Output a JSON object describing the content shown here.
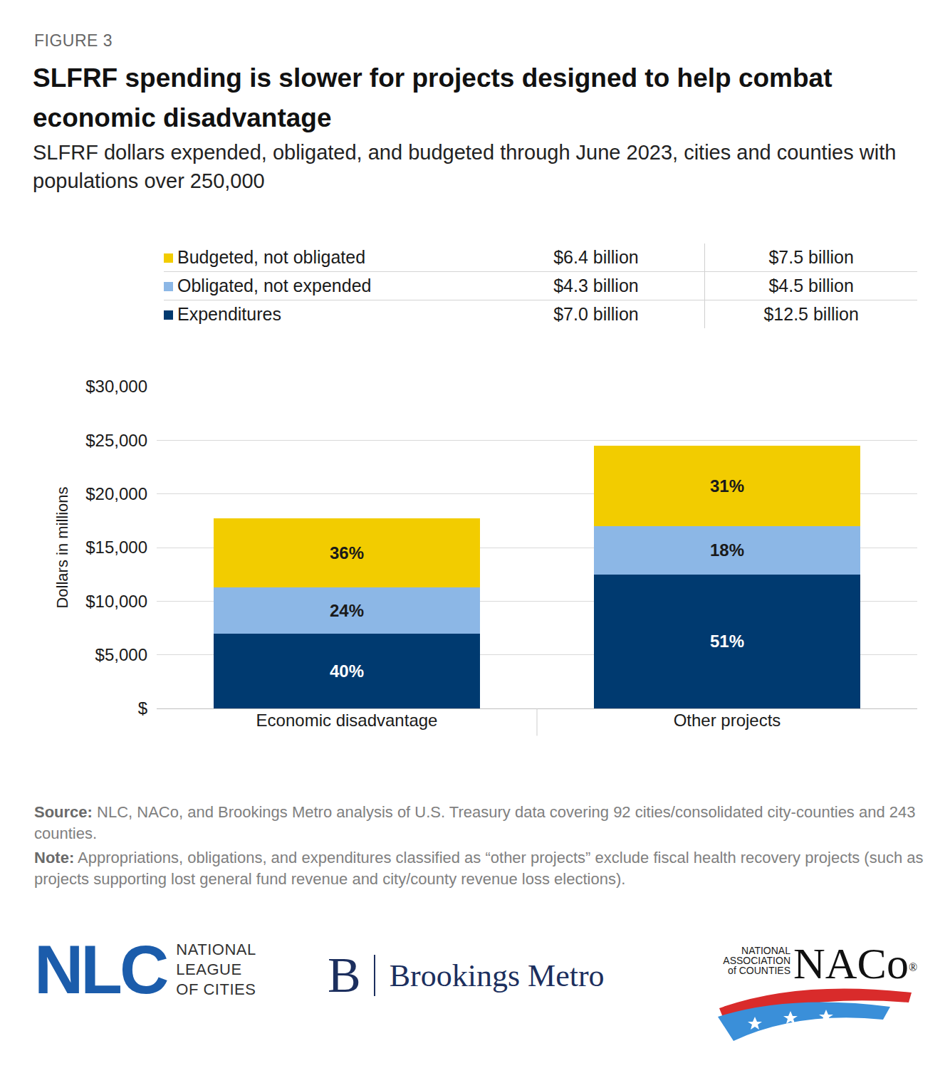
{
  "figure_label": "FIGURE 3",
  "chart_data": {
    "type": "bar",
    "stacked": true,
    "title": "SLFRF spending is slower for projects designed to help combat economic disadvantage",
    "subtitle": "SLFRF dollars expended, obligated, and budgeted through June 2023, cities and counties with populations over 250,000",
    "y_label": "Dollars in millions",
    "categories": [
      "Economic disadvantage",
      "Other projects"
    ],
    "series": [
      {
        "name": "Expenditures",
        "color": "#003a70",
        "values": [
          7000,
          12500
        ],
        "value_labels": [
          "$7.0 billion",
          "$12.5 billion"
        ],
        "shares": [
          40,
          51
        ],
        "share_labels": [
          "40%",
          "51%"
        ]
      },
      {
        "name": "Obligated, not expended",
        "color": "#8cb7e6",
        "values": [
          4300,
          4500
        ],
        "value_labels": [
          "$4.3 billion",
          "$4.5 billion"
        ],
        "shares": [
          24,
          18
        ],
        "share_labels": [
          "24%",
          "18%"
        ]
      },
      {
        "name": "Budgeted, not obligated",
        "color": "#f2cc00",
        "values": [
          6400,
          7500
        ],
        "value_labels": [
          "$6.4 billion",
          "$7.5 billion"
        ],
        "shares": [
          36,
          31
        ],
        "share_labels": [
          "36%",
          "31%"
        ]
      }
    ],
    "ylim": [
      0,
      30000
    ],
    "yticks": [
      {
        "value": 0,
        "label": "$"
      },
      {
        "value": 5000,
        "label": "$5,000"
      },
      {
        "value": 10000,
        "label": "$10,000"
      },
      {
        "value": 15000,
        "label": "$15,000"
      },
      {
        "value": 20000,
        "label": "$20,000"
      },
      {
        "value": 25000,
        "label": "$25,000"
      },
      {
        "value": 30000,
        "label": "$30,000"
      }
    ],
    "grid": true
  },
  "source": {
    "label": "Source:",
    "text": "NLC, NACo, and Brookings Metro analysis of U.S. Treasury data covering 92 cities/consolidated city-counties and 243 counties."
  },
  "note": {
    "label": "Note:",
    "text": "Appropriations, obligations, and expenditures classified as “other projects” exclude fiscal health recovery projects (such as projects supporting lost general fund revenue and city/county revenue loss elections)."
  },
  "logos": {
    "nlc": {
      "mark": "NLC",
      "lines": [
        "NATIONAL",
        "LEAGUE",
        "OF CITIES"
      ]
    },
    "brookings": {
      "mark": "B",
      "name": "Brookings Metro"
    },
    "naco": {
      "lines": [
        "NATIONAL",
        "ASSOCIATION",
        "of COUNTIES"
      ],
      "mark": "NACo",
      "reg": "®"
    }
  }
}
